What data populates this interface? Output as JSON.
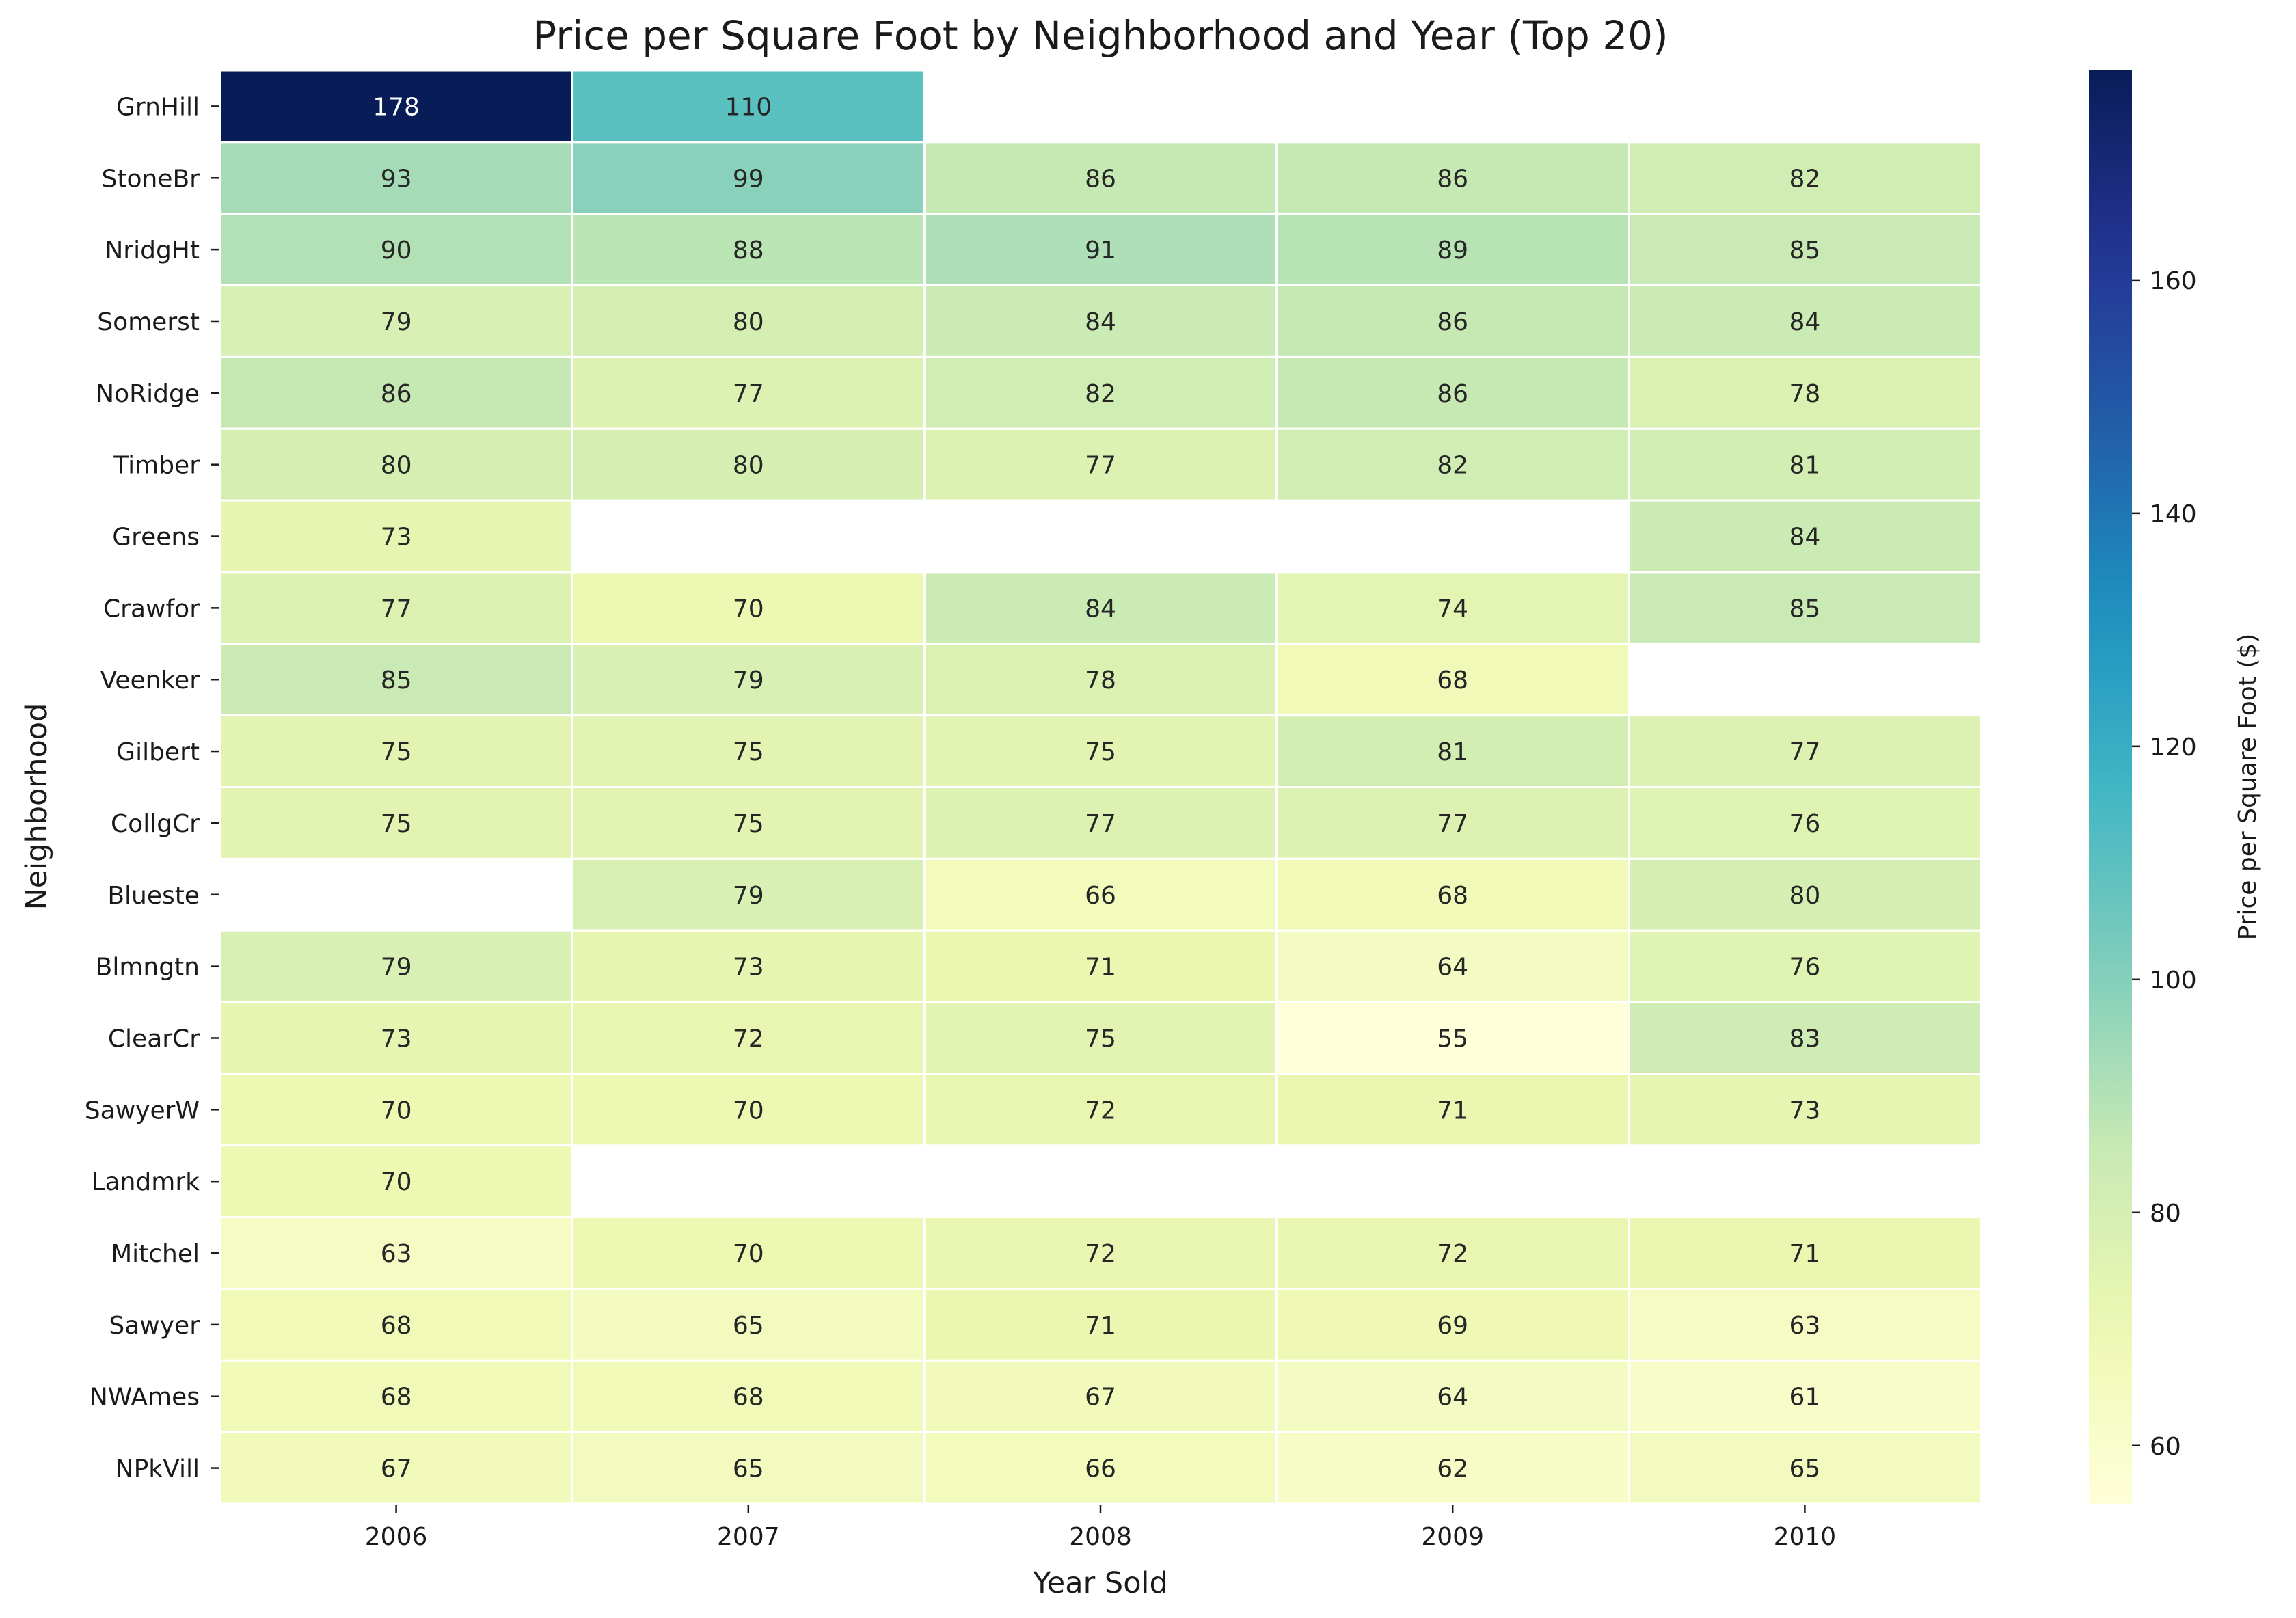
{
  "chart_data": {
    "type": "heatmap",
    "title": "Price per Square Foot by Neighborhood and Year (Top 20)",
    "xlabel": "Year Sold",
    "ylabel": "Neighborhood",
    "colorbar_label": "Price per Square Foot ($)",
    "colormap": "YlGnBu",
    "color_range": [
      55,
      178
    ],
    "colorbar_ticks": [
      60,
      80,
      100,
      120,
      140,
      160
    ],
    "x": [
      "2006",
      "2007",
      "2008",
      "2009",
      "2010"
    ],
    "y": [
      "GrnHill",
      "StoneBr",
      "NridgHt",
      "Somerst",
      "NoRidge",
      "Timber",
      "Greens",
      "Crawfor",
      "Veenker",
      "Gilbert",
      "CollgCr",
      "Blueste",
      "Blmngtn",
      "ClearCr",
      "SawyerW",
      "Landmrk",
      "Mitchel",
      "Sawyer",
      "NWAmes",
      "NPkVill"
    ],
    "values": [
      [
        178,
        110,
        null,
        null,
        null
      ],
      [
        93,
        99,
        86,
        86,
        82
      ],
      [
        90,
        88,
        91,
        89,
        85
      ],
      [
        79,
        80,
        84,
        86,
        84
      ],
      [
        86,
        77,
        82,
        86,
        78
      ],
      [
        80,
        80,
        77,
        82,
        81
      ],
      [
        73,
        null,
        null,
        null,
        84
      ],
      [
        77,
        70,
        84,
        74,
        85
      ],
      [
        85,
        79,
        78,
        68,
        null
      ],
      [
        75,
        75,
        75,
        81,
        77
      ],
      [
        75,
        75,
        77,
        77,
        76
      ],
      [
        null,
        79,
        66,
        68,
        80
      ],
      [
        79,
        73,
        71,
        64,
        76
      ],
      [
        73,
        72,
        75,
        55,
        83
      ],
      [
        70,
        70,
        72,
        71,
        73
      ],
      [
        70,
        null,
        null,
        null,
        null
      ],
      [
        63,
        70,
        72,
        72,
        71
      ],
      [
        68,
        65,
        71,
        69,
        63
      ],
      [
        68,
        68,
        67,
        64,
        61
      ],
      [
        67,
        65,
        66,
        62,
        65
      ]
    ],
    "grid": false,
    "legend": "colorbar-right"
  }
}
